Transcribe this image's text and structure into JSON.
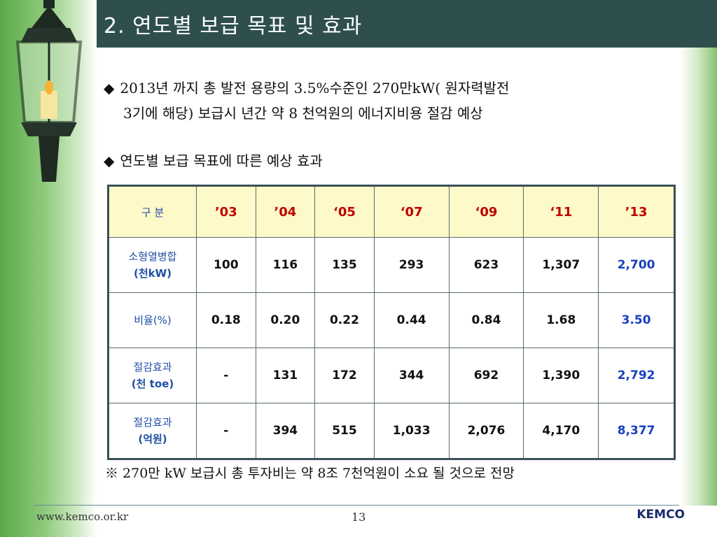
{
  "title": "2. 연도별 보급 목표 및 효과",
  "bullets": {
    "first_line1": "2013년 까지  총  발전 용량의 3.5%수준인 270만kW( 원자력발전",
    "first_line2": "3기에 해당) 보급시 년간 약 8 천억원의 에너지비용 절감 예상",
    "second": "연도별 보급 목표에 따른 예상 효과",
    "marker": "◆"
  },
  "table": {
    "header_label": "구  분",
    "years": [
      "’03",
      "’04",
      "‘05",
      "‘07",
      "‘09",
      "‘11",
      "’13"
    ],
    "rows": [
      {
        "label_line1": "소형열병합",
        "label_line2": "(천kW)",
        "values": [
          "100",
          "116",
          "135",
          "293",
          "623",
          "1,307",
          "2,700"
        ]
      },
      {
        "label_line1": "비율(%)",
        "label_line2": "",
        "values": [
          "0.18",
          "0.20",
          "0.22",
          "0.44",
          "0.84",
          "1.68",
          "3.50"
        ]
      },
      {
        "label_line1": "절감효과",
        "label_line2": "(천 toe)",
        "values": [
          "-",
          "131",
          "172",
          "344",
          "692",
          "1,390",
          "2,792"
        ]
      },
      {
        "label_line1": "절감효과",
        "label_line2": "(억원)",
        "values": [
          "-",
          "394",
          "515",
          "1,033",
          "2,076",
          "4,170",
          "8,377"
        ]
      }
    ]
  },
  "note": "※ 270만 kW 보급시 총 투자비는 약 8조 7천억원이 소요 될 것으로 전망",
  "footer": {
    "url": "www.kemco.or.kr",
    "page": "13",
    "brand": "KEMCO"
  },
  "colors": {
    "title_bar": "#2f4f4f",
    "header_bg": "#fdf9c8",
    "year_text": "#c00000",
    "label_text": "#1f4fa6",
    "last_column": "#1a3fbf"
  }
}
